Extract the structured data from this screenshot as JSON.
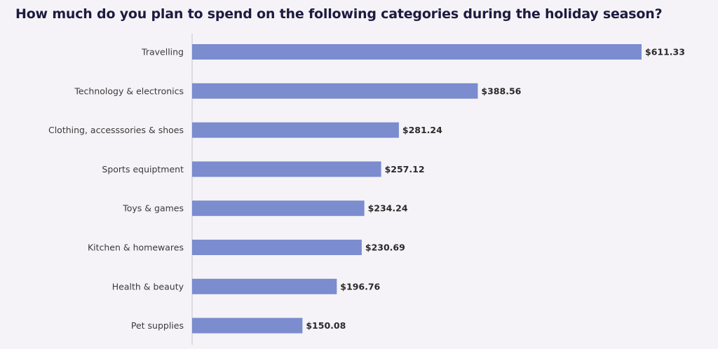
{
  "chart_data": {
    "type": "bar",
    "orientation": "horizontal",
    "title": "How much do you plan to spend on the following categories during the holiday season?",
    "categories": [
      "Travelling",
      "Technology & electronics",
      "Clothing, accesssories & shoes",
      "Sports equiptment",
      "Toys & games",
      "Kitchen & homewares",
      "Health & beauty",
      "Pet supplies"
    ],
    "values": [
      611.33,
      388.56,
      281.24,
      257.12,
      234.24,
      230.69,
      196.76,
      150.08
    ],
    "value_labels": [
      "$611.33",
      "$388.56",
      "$281.24",
      "$257.12",
      "$234.24",
      "$230.69",
      "$196.76",
      "$150.08"
    ],
    "xlim": [
      0,
      611.33
    ],
    "grid": false,
    "legend": "none",
    "bar_color": "#7b8ccf",
    "axis_color": "#c8c6cc"
  }
}
